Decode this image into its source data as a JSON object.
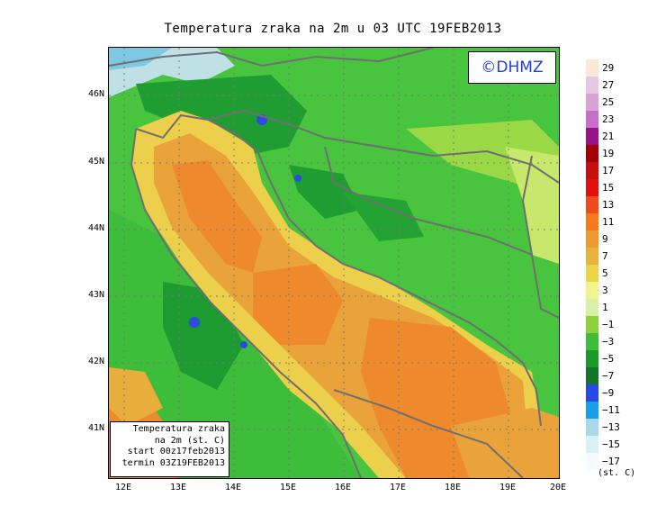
{
  "title": "Temperatura zraka na 2m u 03 UTC 19FEB2013",
  "logo": "©DHMZ",
  "info_box": {
    "line1": "Temperatura zraka",
    "line2": "na 2m (st. C)",
    "line3": "start 00z17feb2013",
    "line4": "termin 03Z19FEB2013"
  },
  "lat_labels": [
    "46N",
    "45N",
    "44N",
    "43N",
    "42N",
    "41N"
  ],
  "lon_labels": [
    "12E",
    "13E",
    "14E",
    "15E",
    "16E",
    "17E",
    "18E",
    "19E",
    "20E"
  ],
  "legend": {
    "labels": [
      "29",
      "27",
      "25",
      "23",
      "21",
      "19",
      "17",
      "15",
      "13",
      "11",
      "9",
      "7",
      "5",
      "3",
      "1",
      "−1",
      "−3",
      "−5",
      "−7",
      "−9",
      "−11",
      "−13",
      "−15",
      "−17"
    ],
    "colors": [
      "#fbe8d6",
      "#e7c7e2",
      "#d9a3d9",
      "#c66fc8",
      "#95128a",
      "#a50000",
      "#c80e0e",
      "#e30f0f",
      "#f04b1e",
      "#f57a1e",
      "#f0992f",
      "#e9b23b",
      "#ead44a",
      "#eff58b",
      "#d8f0a8",
      "#8fd13c",
      "#3fbd3a",
      "#1a9a2c",
      "#14752a",
      "#2747e6",
      "#17a0ea",
      "#a9d8e8",
      "#d9f0f4",
      "#f4fcff"
    ],
    "unit": "(st. C)"
  },
  "colors": {
    "sea_warm": "#ee8a2c",
    "sea_mid": "#eaa23a",
    "coast_yellow": "#ecd24a",
    "land_light": "#9ad845",
    "land_green": "#44c23c",
    "land_dark": "#1d9a30",
    "border_line": "#6f6f6f"
  }
}
